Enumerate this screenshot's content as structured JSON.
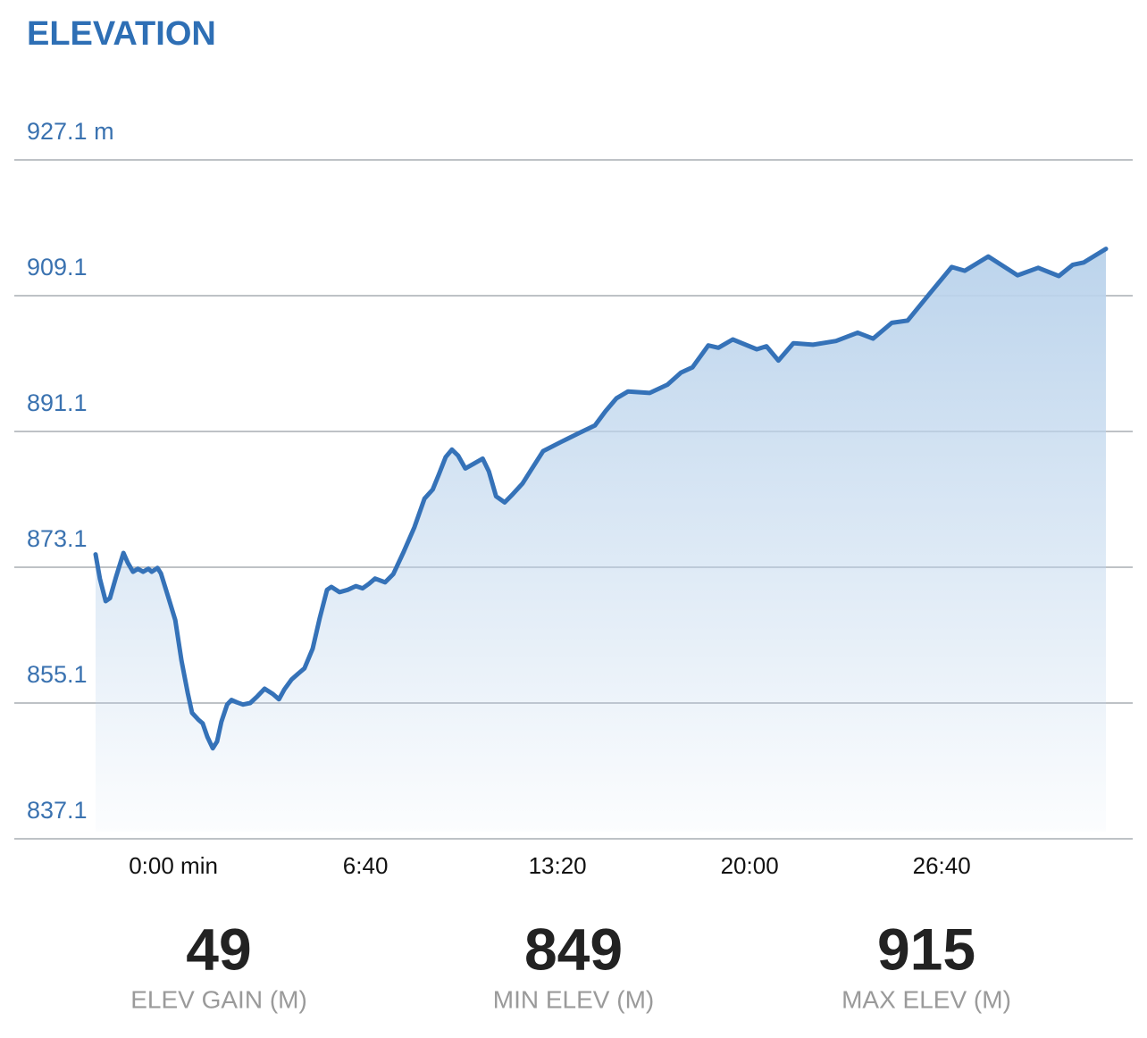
{
  "chart_data": {
    "type": "area",
    "title": "ELEVATION",
    "color": "#3572b8",
    "grid": true,
    "ylim": [
      837.1,
      927.1
    ],
    "yticks": [
      {
        "value": 927.1,
        "label": "927.1 m"
      },
      909.1,
      891.1,
      873.1,
      855.1,
      837.1
    ],
    "xlim": [
      -162,
      1942
    ],
    "xticks": [
      {
        "value": 0,
        "label": "0:00 min"
      },
      {
        "value": 400,
        "label": "6:40"
      },
      {
        "value": 800,
        "label": "13:20"
      },
      {
        "value": 1200,
        "label": "20:00"
      },
      {
        "value": 1600,
        "label": "26:40"
      }
    ],
    "x": [
      -162,
      -153,
      -141,
      -132,
      -119,
      -104,
      -95,
      -84,
      -74,
      -63,
      -52,
      -45,
      -33,
      -26,
      -11,
      4,
      17,
      30,
      39,
      52,
      61,
      71,
      82,
      91,
      100,
      112,
      121,
      132,
      145,
      160,
      175,
      190,
      207,
      220,
      231,
      246,
      260,
      273,
      290,
      305,
      320,
      329,
      346,
      363,
      380,
      394,
      407,
      420,
      441,
      458,
      480,
      502,
      523,
      540,
      553,
      567,
      580,
      593,
      608,
      625,
      644,
      657,
      672,
      690,
      707,
      727,
      744,
      770,
      807,
      845,
      878,
      900,
      923,
      947,
      992,
      1029,
      1057,
      1081,
      1114,
      1135,
      1165,
      1215,
      1235,
      1260,
      1291,
      1332,
      1380,
      1425,
      1457,
      1496,
      1529,
      1574,
      1621,
      1648,
      1697,
      1758,
      1801,
      1844,
      1873,
      1896,
      1942
    ],
    "values": [
      874.8,
      871.6,
      868.6,
      869.0,
      871.9,
      875.0,
      873.7,
      872.5,
      872.9,
      872.5,
      872.9,
      872.5,
      873.0,
      872.3,
      869.2,
      866.1,
      860.7,
      856.4,
      853.8,
      852.9,
      852.4,
      850.6,
      849.1,
      850.0,
      852.6,
      854.9,
      855.5,
      855.2,
      854.9,
      855.1,
      856.0,
      857.0,
      856.3,
      855.6,
      856.9,
      858.2,
      859.0,
      859.7,
      862.3,
      866.4,
      870.1,
      870.5,
      869.8,
      870.1,
      870.6,
      870.3,
      870.9,
      871.6,
      871.1,
      872.2,
      875.2,
      878.4,
      882.2,
      883.4,
      885.4,
      887.7,
      888.7,
      887.9,
      886.2,
      886.8,
      887.5,
      885.8,
      882.5,
      881.7,
      882.8,
      884.2,
      885.9,
      888.5,
      889.7,
      890.9,
      891.9,
      893.8,
      895.5,
      896.4,
      896.2,
      897.3,
      898.9,
      899.6,
      902.5,
      902.2,
      903.3,
      902.0,
      902.4,
      900.5,
      902.8,
      902.6,
      903.1,
      904.2,
      903.4,
      905.5,
      905.8,
      909.3,
      912.9,
      912.4,
      914.3,
      911.8,
      912.8,
      911.7,
      913.2,
      913.5,
      915.3
    ]
  },
  "stats": [
    {
      "value": 49,
      "label": "ELEV GAIN (M)"
    },
    {
      "value": 849,
      "label": "MIN ELEV (M)"
    },
    {
      "value": 915,
      "label": "MAX ELEV (M)"
    }
  ]
}
